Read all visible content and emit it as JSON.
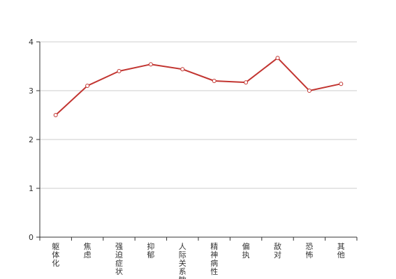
{
  "chart_data": {
    "type": "line",
    "title": "",
    "xlabel": "",
    "ylabel": "",
    "categories": [
      "躯体化",
      "焦虑",
      "强迫症状",
      "抑郁",
      "人际关系敏感",
      "精神病性",
      "偏执",
      "敌对",
      "恐怖",
      "其他"
    ],
    "series": [
      {
        "values": [
          2.5,
          3.1,
          3.4,
          3.54,
          3.44,
          3.2,
          3.17,
          3.67,
          3.0,
          3.14
        ]
      }
    ],
    "ylim": [
      0,
      4
    ],
    "yticks": [
      0,
      1,
      2,
      3,
      4
    ],
    "grid": true,
    "legend": "none",
    "colors": {
      "line": "#c23531",
      "grid": "#cccccc",
      "axis": "#333333",
      "marker_fill": "#ffffff"
    }
  }
}
